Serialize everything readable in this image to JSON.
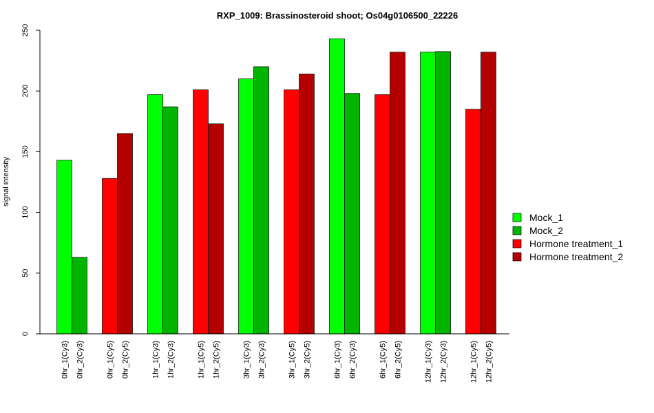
{
  "chart_data": {
    "type": "bar",
    "title": "RXP_1009: Brassinosteroid shoot; Os04g0106500_22226",
    "ylabel": "signal intensity",
    "xlabel": "",
    "ylim": [
      0,
      250
    ],
    "yticks": [
      0,
      50,
      100,
      150,
      200,
      250
    ],
    "grid": false,
    "legend_position": "right",
    "categories": [
      "0hr_1(Cy3)",
      "0hr_2(Cy3)",
      "0hr_1(Cy5)",
      "0hr_2(Cy5)",
      "1hr_1(Cy3)",
      "1hr_2(Cy3)",
      "1hr_1(Cy5)",
      "1hr_2(Cy5)",
      "3hr_1(Cy3)",
      "3hr_2(Cy3)",
      "3hr_1(Cy5)",
      "3hr_2(Cy5)",
      "6hr_1(Cy3)",
      "6hr_2(Cy3)",
      "6hr_1(Cy5)",
      "6hr_2(Cy5)",
      "12hr_1(Cy3)",
      "12hr_2(Cy3)",
      "12hr_1(Cy5)",
      "12hr_2(Cy5)"
    ],
    "values": [
      143,
      63,
      128,
      165,
      197,
      187,
      201,
      173,
      210,
      220,
      201,
      214,
      243,
      198,
      197,
      232,
      232,
      232.5,
      185,
      232
    ],
    "bar_series": [
      0,
      1,
      2,
      3,
      0,
      1,
      2,
      3,
      0,
      1,
      2,
      3,
      0,
      1,
      2,
      3,
      0,
      1,
      2,
      3
    ],
    "series": [
      {
        "name": "Mock_1",
        "color": "#00ff00"
      },
      {
        "name": "Mock_2",
        "color": "#00b400"
      },
      {
        "name": "Hormone treatment_1",
        "color": "#ff0000"
      },
      {
        "name": "Hormone treatment_2",
        "color": "#b40000"
      }
    ]
  }
}
